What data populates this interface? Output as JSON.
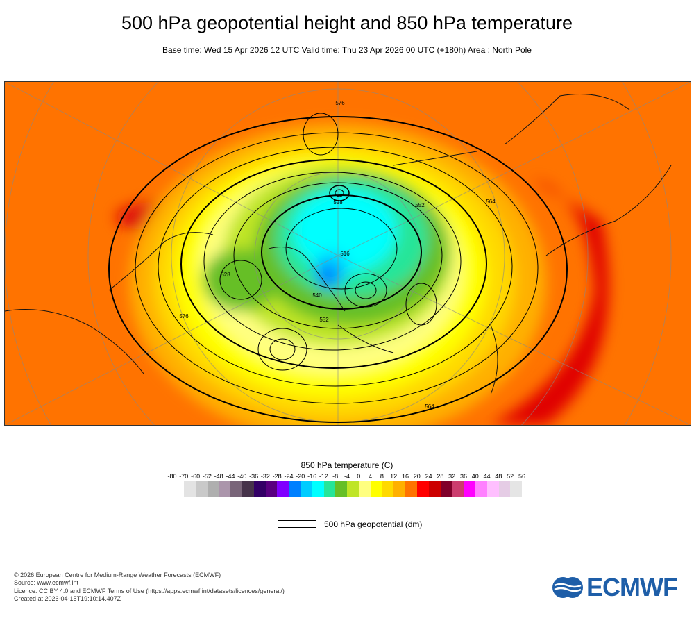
{
  "header": {
    "title": "500 hPa geopotential height and 850 hPa temperature",
    "subtitle": "Base time: Wed 15 Apr 2026 12 UTC Valid time: Thu 23 Apr 2026 00 UTC (+180h) Area : North Pole"
  },
  "map": {
    "contour_labels": [
      "576",
      "528",
      "552",
      "540",
      "516",
      "564",
      "528",
      "552",
      "576",
      "564"
    ]
  },
  "legend": {
    "title": "850 hPa temperature (C)",
    "labels": [
      "-80",
      "-70",
      "-60",
      "-52",
      "-48",
      "-44",
      "-40",
      "-36",
      "-32",
      "-28",
      "-24",
      "-20",
      "-16",
      "-12",
      "-8",
      "-4",
      "0",
      "4",
      "8",
      "12",
      "16",
      "20",
      "24",
      "28",
      "32",
      "36",
      "40",
      "44",
      "48",
      "52",
      "56"
    ],
    "colors": [
      "#e3e3e3",
      "#c9c9c9",
      "#afafaf",
      "#ab95ab",
      "#796579",
      "#46334a",
      "#330066",
      "#590080",
      "#8000ff",
      "#0080ff",
      "#00ccff",
      "#00ffff",
      "#26e599",
      "#66bf26",
      "#bfe526",
      "#ffff80",
      "#ffff00",
      "#ffd900",
      "#ffb000",
      "#ff7300",
      "#ff0000",
      "#cc0000",
      "#80002a",
      "#cc3d6e",
      "#ff00ff",
      "#ff80ff",
      "#ffbfff",
      "#e5cce5",
      "#e5e5e5"
    ],
    "geopotential_label": "500 hPa geopotential (dm)"
  },
  "footer": {
    "lines": [
      "© 2026 European Centre for Medium-Range Weather Forecasts (ECMWF)",
      "Source: www.ecmwf.int",
      "Licence: CC BY 4.0 and ECMWF Terms of Use (https://apps.ecmwf.int/datasets/licences/general/)",
      "Created at 2026-04-15T19:10:14.407Z"
    ],
    "logo_text": "ECMWF"
  }
}
